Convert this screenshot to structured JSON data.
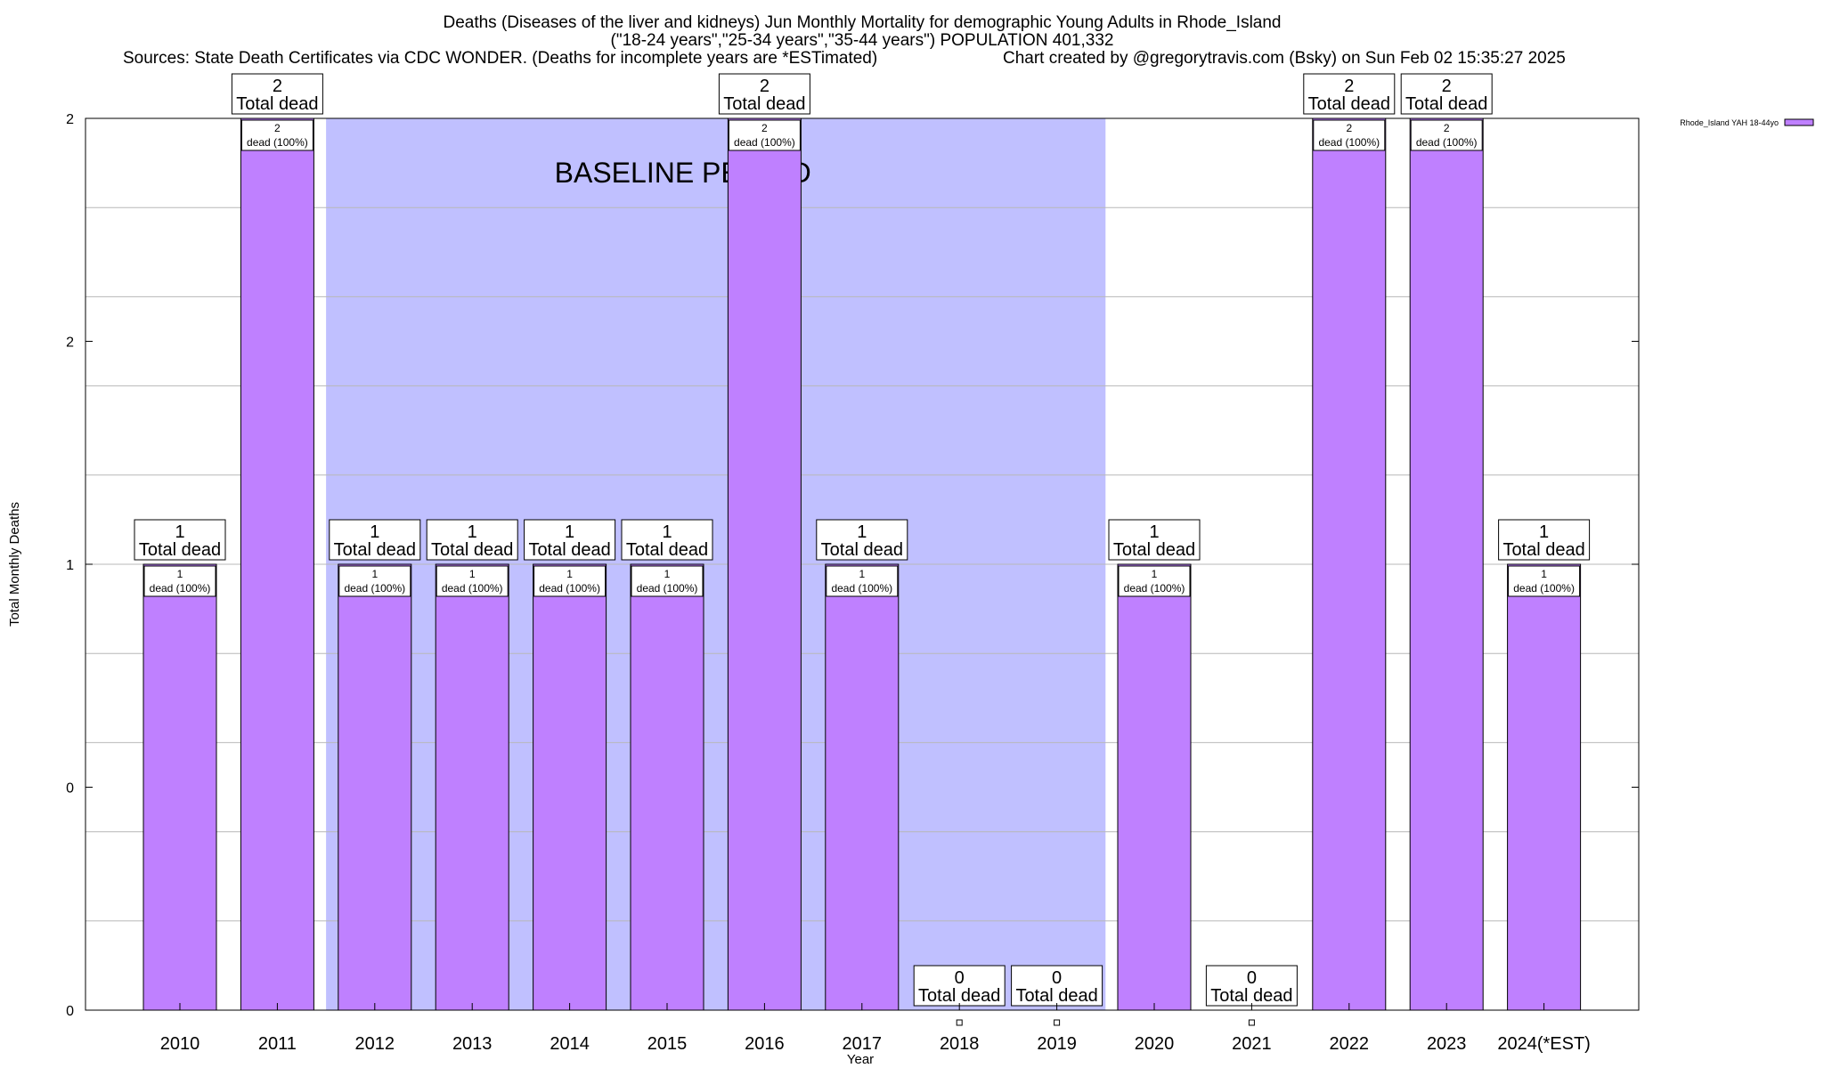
{
  "chart_data": {
    "type": "bar",
    "title_lines": [
      "Deaths (Diseases of the liver and kidneys) Jun Monthly Mortality for demographic Young Adults in Rhode_Island",
      "(\"18-24 years\",\"25-34 years\",\"35-44 years\") POPULATION 401,332"
    ],
    "sources": "Sources: State Death Certificates via CDC WONDER. (Deaths for incomplete years are *ESTimated)",
    "credit": "Chart created by @gregorytravis.com (Bsky) on Sun Feb 02 15:35:27 2025",
    "xlabel": "Year",
    "ylabel": "Total Monthly Deaths",
    "categories": [
      "2010",
      "2011",
      "2012",
      "2013",
      "2014",
      "2015",
      "2016",
      "2017",
      "2018",
      "2019",
      "2020",
      "2021",
      "2022",
      "2023",
      "2024(*EST)"
    ],
    "series": [
      {
        "name": "Rhode_Island YAH 18-44yo",
        "color": "#bf80ff",
        "values": [
          1,
          2,
          1,
          1,
          1,
          1,
          2,
          1,
          0,
          0,
          1,
          0,
          2,
          2,
          1
        ]
      }
    ],
    "total_labels": [
      "1",
      "2",
      "1",
      "1",
      "1",
      "1",
      "2",
      "1",
      "0",
      "0",
      "1",
      "0",
      "2",
      "2",
      "1"
    ],
    "total_suffix": "Total dead",
    "segment_labels": [
      "1",
      "2",
      "1",
      "1",
      "1",
      "1",
      "2",
      "1",
      "",
      "",
      "1",
      "",
      "2",
      "2",
      "1"
    ],
    "segment_suffix": "dead (100%)",
    "ylim": [
      0,
      2
    ],
    "yticks": [
      {
        "value": 0,
        "label": "0"
      },
      {
        "value": 0.5,
        "label": "0"
      },
      {
        "value": 1,
        "label": "1"
      },
      {
        "value": 1.5,
        "label": "2"
      },
      {
        "value": 2,
        "label": "2"
      }
    ],
    "baseline": {
      "label": "BASELINE PERIOD",
      "from": "2012",
      "to": "2019",
      "color": "#c0c0ff"
    },
    "grid": true,
    "legend_position": "top-right",
    "bar_color": "#bf80ff"
  }
}
